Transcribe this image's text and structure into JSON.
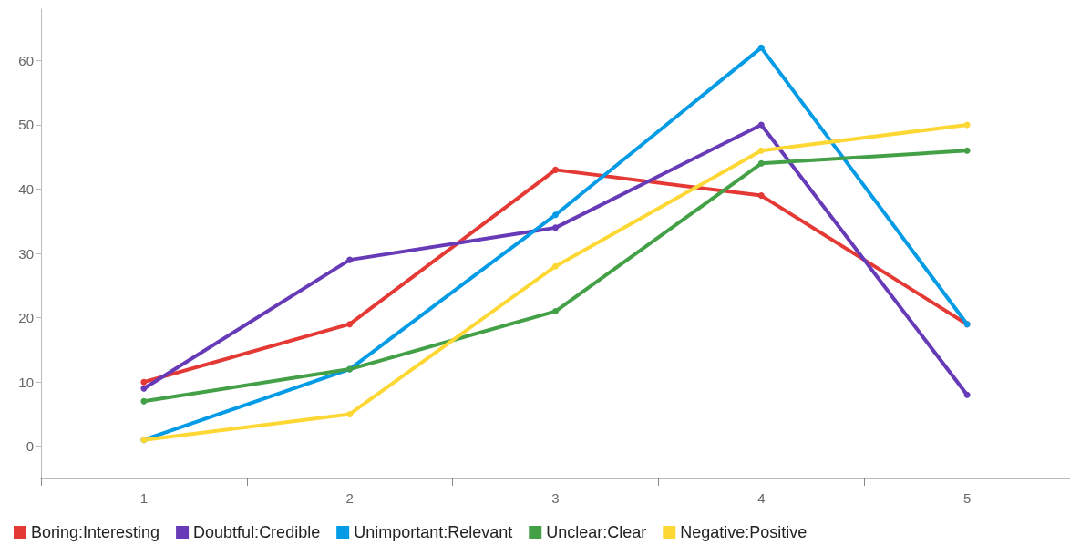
{
  "chart_data": {
    "type": "line",
    "categories": [
      "1",
      "2",
      "3",
      "4",
      "5"
    ],
    "series": [
      {
        "name": "Boring:Interesting",
        "color": "#e53935",
        "values": [
          10,
          19,
          43,
          39,
          19
        ]
      },
      {
        "name": "Doubtful:Credible",
        "color": "#673ab7",
        "values": [
          9,
          29,
          34,
          50,
          8
        ]
      },
      {
        "name": "Unimportant:Relevant",
        "color": "#039be5",
        "values": [
          1,
          12,
          36,
          62,
          19
        ]
      },
      {
        "name": "Unclear:Clear",
        "color": "#43a047",
        "values": [
          7,
          12,
          21,
          44,
          46
        ]
      },
      {
        "name": "Negative:Positive",
        "color": "#fdd835",
        "values": [
          1,
          5,
          28,
          46,
          50
        ]
      }
    ],
    "ylim": [
      -5,
      68
    ],
    "yticks": [
      0,
      10,
      20,
      30,
      40,
      50,
      60
    ],
    "grid": false,
    "legend": "bottom left",
    "marker": "circle",
    "line_style": "solid"
  }
}
